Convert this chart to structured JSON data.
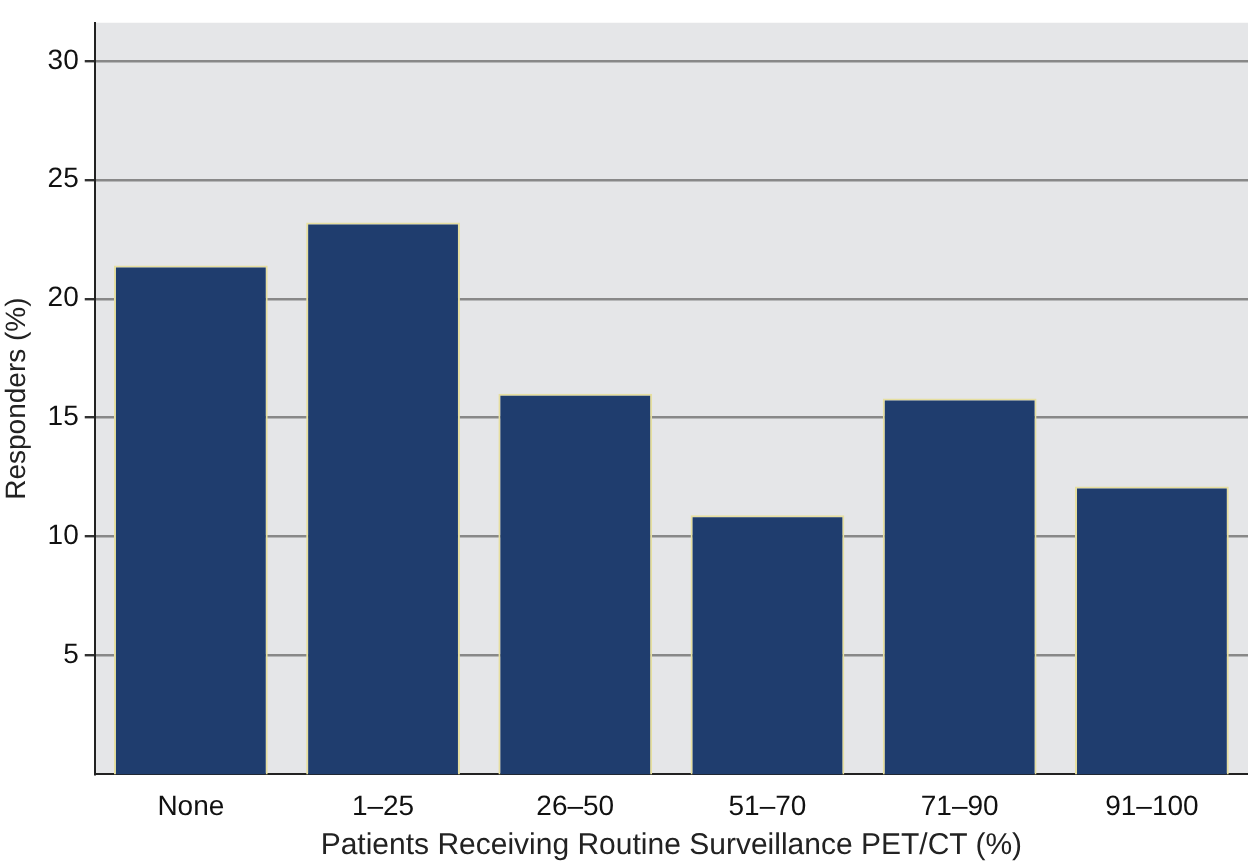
{
  "chart_data": {
    "type": "bar",
    "xlabel": "Patients Receiving Routine Surveillance PET/CT (%)",
    "ylabel": "Responders (%)",
    "categories": [
      "None",
      "1–25",
      "26–50",
      "51–70",
      "71–90",
      "91–100"
    ],
    "values": [
      21.4,
      23.2,
      16.0,
      10.9,
      15.8,
      12.1
    ],
    "color": "#1f3d6e",
    "ylim": [
      0,
      31.6
    ],
    "yticks": [
      5,
      10,
      15,
      20,
      25,
      30
    ],
    "grid": "y",
    "legend": false
  }
}
